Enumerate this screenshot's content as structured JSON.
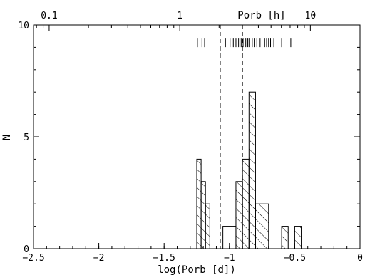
{
  "chart_data": {
    "type": "histogram",
    "xlabel": "log(Porb [d])",
    "ylabel": "N",
    "top_axis_label": "Porb [h]",
    "xlim": [
      -2.5,
      0
    ],
    "ylim": [
      0,
      10
    ],
    "x_ticks": [
      {
        "value": -2.5,
        "label": "−2.5"
      },
      {
        "value": -2,
        "label": "−2"
      },
      {
        "value": -1.5,
        "label": "−1.5"
      },
      {
        "value": -1,
        "label": "−1"
      },
      {
        "value": -0.5,
        "label": "−0.5"
      },
      {
        "value": 0,
        "label": "0"
      }
    ],
    "y_ticks": [
      {
        "value": 0,
        "label": "0"
      },
      {
        "value": 5,
        "label": "5"
      },
      {
        "value": 10,
        "label": "10"
      }
    ],
    "top_ticks": [
      {
        "value": -2.3802,
        "label": "0.1"
      },
      {
        "value": -1.3802,
        "label": "1"
      },
      {
        "value": -0.3802,
        "label": "10"
      }
    ],
    "bins": [
      {
        "x0": -1.25,
        "x1": -1.2167,
        "count": 4,
        "hatched": true
      },
      {
        "x0": -1.2167,
        "x1": -1.1833,
        "count": 3,
        "hatched": true
      },
      {
        "x0": -1.1833,
        "x1": -1.15,
        "count": 2,
        "hatched": true
      },
      {
        "x0": -1.05,
        "x1": -0.95,
        "count": 1,
        "hatched": false
      },
      {
        "x0": -0.95,
        "x1": -0.9,
        "count": 3,
        "hatched": true
      },
      {
        "x0": -0.9,
        "x1": -0.85,
        "count": 4,
        "hatched": true
      },
      {
        "x0": -0.85,
        "x1": -0.8,
        "count": 7,
        "hatched": true
      },
      {
        "x0": -0.8,
        "x1": -0.7,
        "count": 2,
        "hatched": true
      },
      {
        "x0": -0.6,
        "x1": -0.55,
        "count": 1,
        "hatched": true
      },
      {
        "x0": -0.5,
        "x1": -0.45,
        "count": 1,
        "hatched": true
      }
    ],
    "vertical_lines": [
      -1.07,
      -0.9
    ],
    "rug_marks": [
      -1.245,
      -1.21,
      -1.19,
      -1.03,
      -0.995,
      -0.97,
      -0.95,
      -0.93,
      -0.91,
      -0.895,
      -0.875,
      -0.865,
      -0.86,
      -0.85,
      -0.825,
      -0.81,
      -0.79,
      -0.765,
      -0.73,
      -0.715,
      -0.7,
      -0.685,
      -0.66,
      -0.6,
      -0.53
    ],
    "rug_level": 9.2
  }
}
